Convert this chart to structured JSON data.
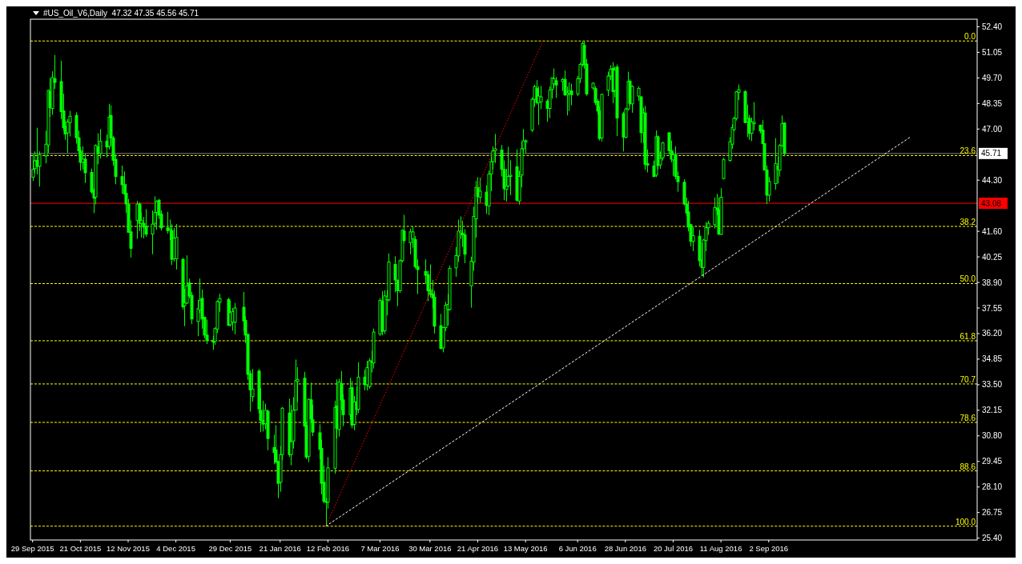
{
  "chart_data": {
    "type": "candlestick",
    "title": "#US_Oil_V6,Daily  47.32 47.35 45.56 45.71",
    "color": "#00ff00",
    "grid": false,
    "annotations": [
      {
        "text": "0.0",
        "x": "2016-12-07",
        "y": 51.65
      },
      {
        "text": "23.6",
        "x": "2016-12-07",
        "y": 45.6
      },
      {
        "text": "38.2",
        "x": "2016-12-07",
        "y": 41.86
      },
      {
        "text": "50.0",
        "x": "2016-12-07",
        "y": 38.84
      },
      {
        "text": "61.8",
        "x": "2016-12-07",
        "y": 35.82
      },
      {
        "text": "70.7",
        "x": "2016-12-07",
        "y": 33.54
      },
      {
        "text": "78.6",
        "x": "2016-12-07",
        "y": 31.51
      },
      {
        "text": "88.6",
        "x": "2016-12-07",
        "y": 28.95
      },
      {
        "text": "100.0",
        "x": "2016-12-07",
        "y": 26.03
      }
    ],
    "xlim": [
      "2015-09-28",
      "2016-12-07"
    ],
    "xticks": [
      {
        "value": "2015-09-29",
        "label": "29 Sep 2015"
      },
      {
        "value": "2015-10-21",
        "label": "21 Oct 2015"
      },
      {
        "value": "2015-11-12",
        "label": "12 Nov 2015"
      },
      {
        "value": "2015-12-04",
        "label": "4 Dec 2015"
      },
      {
        "value": "2015-12-29",
        "label": "29 Dec 2015"
      },
      {
        "value": "2016-01-21",
        "label": "21 Jan 2016"
      },
      {
        "value": "2016-02-12",
        "label": "12 Feb 2016"
      },
      {
        "value": "2016-03-07",
        "label": "7 Mar 2016"
      },
      {
        "value": "2016-03-30",
        "label": "30 Mar 2016"
      },
      {
        "value": "2016-04-21",
        "label": "21 Apr 2016"
      },
      {
        "value": "2016-05-13",
        "label": "13 May 2016"
      },
      {
        "value": "2016-06-06",
        "label": "6 Jun 2016"
      },
      {
        "value": "2016-06-28",
        "label": "28 Jun 2016"
      },
      {
        "value": "2016-07-20",
        "label": "20 Jul 2016"
      },
      {
        "value": "2016-08-11",
        "label": "11 Aug 2016"
      },
      {
        "value": "2016-09-02",
        "label": "2 Sep 2016"
      }
    ],
    "ylim": [
      25.3,
      52.8
    ],
    "yticks": [
      {
        "value": 52.4,
        "label": "52.40"
      },
      {
        "value": 51.05,
        "label": "51.05"
      },
      {
        "value": 49.7,
        "label": "49.70"
      },
      {
        "value": 48.35,
        "label": "48.35"
      },
      {
        "value": 47,
        "label": "47.00"
      },
      {
        "value": 44.3,
        "label": "44.30"
      },
      {
        "value": 41.6,
        "label": "41.60"
      },
      {
        "value": 40.25,
        "label": "40.25"
      },
      {
        "value": 38.9,
        "label": "38.90"
      },
      {
        "value": 37.55,
        "label": "37.55"
      },
      {
        "value": 36.2,
        "label": "36.20"
      },
      {
        "value": 34.85,
        "label": "34.85"
      },
      {
        "value": 33.5,
        "label": "33.50"
      },
      {
        "value": 32.15,
        "label": "32.15"
      },
      {
        "value": 30.8,
        "label": "30.80"
      },
      {
        "value": 29.45,
        "label": "29.45"
      },
      {
        "value": 28.1,
        "label": "28.10"
      },
      {
        "value": 26.75,
        "label": "26.75"
      },
      {
        "value": 25.4,
        "label": "25.40"
      }
    ],
    "ref_lines": [
      {
        "axis": "y",
        "value": 45.71,
        "label": "45.71",
        "color": "#808080",
        "line_style": "solid"
      },
      {
        "axis": "y",
        "value": 43.08,
        "label": "43.08",
        "color": "#ff0000",
        "line_style": "solid"
      },
      {
        "axis": "y",
        "value": 51.65,
        "color": "#ffff00",
        "line_style": "dashed"
      },
      {
        "axis": "y",
        "value": 45.6,
        "color": "#ffff00",
        "line_style": "dashed"
      },
      {
        "axis": "y",
        "value": 41.86,
        "color": "#ffff00",
        "line_style": "dashed"
      },
      {
        "axis": "y",
        "value": 38.84,
        "color": "#ffff00",
        "line_style": "dashed"
      },
      {
        "axis": "y",
        "value": 35.82,
        "color": "#ffff00",
        "line_style": "dashed"
      },
      {
        "axis": "y",
        "value": 33.54,
        "color": "#ffff00",
        "line_style": "dashed"
      },
      {
        "axis": "y",
        "value": 31.51,
        "color": "#ffff00",
        "line_style": "dashed"
      },
      {
        "axis": "y",
        "value": 28.95,
        "color": "#ffff00",
        "line_style": "dashed"
      },
      {
        "axis": "y",
        "value": 26.03,
        "color": "#ffff00",
        "line_style": "dashed"
      }
    ],
    "series": [
      {
        "type": "line",
        "color": "#ffffff",
        "line_style": "dashed",
        "x": [
          "2016-02-11",
          "2016-11-06"
        ],
        "values": [
          26.03,
          46.56
        ]
      },
      {
        "type": "line",
        "color": "#ff0000",
        "line_style": "dotted",
        "x": [
          "2016-02-11",
          "2016-05-21"
        ],
        "values": [
          26.03,
          51.65
        ]
      }
    ],
    "x": [
      "2015-09-29",
      "2015-09-30",
      "2015-10-01",
      "2015-10-02",
      "2015-10-05",
      "2015-10-06",
      "2015-10-07",
      "2015-10-08",
      "2015-10-09",
      "2015-10-12",
      "2015-10-13",
      "2015-10-14",
      "2015-10-15",
      "2015-10-16",
      "2015-10-19",
      "2015-10-20",
      "2015-10-21",
      "2015-10-22",
      "2015-10-23",
      "2015-10-26",
      "2015-10-27",
      "2015-10-28",
      "2015-10-29",
      "2015-10-30",
      "2015-11-02",
      "2015-11-03",
      "2015-11-04",
      "2015-11-05",
      "2015-11-06",
      "2015-11-09",
      "2015-11-10",
      "2015-11-11",
      "2015-11-12",
      "2015-11-13",
      "2015-11-16",
      "2015-11-17",
      "2015-11-18",
      "2015-11-19",
      "2015-11-20",
      "2015-11-23",
      "2015-11-24",
      "2015-11-25",
      "2015-11-26",
      "2015-11-27",
      "2015-11-30",
      "2015-12-01",
      "2015-12-02",
      "2015-12-03",
      "2015-12-04",
      "2015-12-07",
      "2015-12-08",
      "2015-12-09",
      "2015-12-10",
      "2015-12-11",
      "2015-12-14",
      "2015-12-15",
      "2015-12-16",
      "2015-12-17",
      "2015-12-18",
      "2015-12-21",
      "2015-12-22",
      "2015-12-23",
      "2015-12-24",
      "2015-12-28",
      "2015-12-29",
      "2015-12-30",
      "2015-12-31",
      "2016-01-04",
      "2016-01-05",
      "2016-01-06",
      "2016-01-07",
      "2016-01-08",
      "2016-01-11",
      "2016-01-12",
      "2016-01-13",
      "2016-01-14",
      "2016-01-15",
      "2016-01-18",
      "2016-01-19",
      "2016-01-20",
      "2016-01-21",
      "2016-01-22",
      "2016-01-25",
      "2016-01-26",
      "2016-01-27",
      "2016-01-28",
      "2016-01-29",
      "2016-02-01",
      "2016-02-02",
      "2016-02-03",
      "2016-02-04",
      "2016-02-05",
      "2016-02-08",
      "2016-02-09",
      "2016-02-10",
      "2016-02-11",
      "2016-02-12",
      "2016-02-15",
      "2016-02-16",
      "2016-02-17",
      "2016-02-18",
      "2016-02-19",
      "2016-02-22",
      "2016-02-23",
      "2016-02-24",
      "2016-02-25",
      "2016-02-26",
      "2016-02-29",
      "2016-03-01",
      "2016-03-02",
      "2016-03-03",
      "2016-03-04",
      "2016-03-07",
      "2016-03-08",
      "2016-03-09",
      "2016-03-10",
      "2016-03-11",
      "2016-03-14",
      "2016-03-15",
      "2016-03-16",
      "2016-03-17",
      "2016-03-18",
      "2016-03-21",
      "2016-03-22",
      "2016-03-23",
      "2016-03-24",
      "2016-03-28",
      "2016-03-29",
      "2016-03-30",
      "2016-03-31",
      "2016-04-01",
      "2016-04-04",
      "2016-04-05",
      "2016-04-06",
      "2016-04-07",
      "2016-04-08",
      "2016-04-11",
      "2016-04-12",
      "2016-04-13",
      "2016-04-14",
      "2016-04-15",
      "2016-04-18",
      "2016-04-19",
      "2016-04-20",
      "2016-04-21",
      "2016-04-22",
      "2016-04-25",
      "2016-04-26",
      "2016-04-27",
      "2016-04-28",
      "2016-04-29",
      "2016-05-02",
      "2016-05-03",
      "2016-05-04",
      "2016-05-05",
      "2016-05-06",
      "2016-05-09",
      "2016-05-10",
      "2016-05-11",
      "2016-05-12",
      "2016-05-13",
      "2016-05-16",
      "2016-05-17",
      "2016-05-18",
      "2016-05-19",
      "2016-05-20",
      "2016-05-23",
      "2016-05-24",
      "2016-05-25",
      "2016-05-26",
      "2016-05-27",
      "2016-05-30",
      "2016-05-31",
      "2016-06-01",
      "2016-06-02",
      "2016-06-03",
      "2016-06-06",
      "2016-06-07",
      "2016-06-08",
      "2016-06-09",
      "2016-06-10",
      "2016-06-13",
      "2016-06-14",
      "2016-06-15",
      "2016-06-16",
      "2016-06-17",
      "2016-06-20",
      "2016-06-21",
      "2016-06-22",
      "2016-06-23",
      "2016-06-24",
      "2016-06-27",
      "2016-06-28",
      "2016-06-29",
      "2016-06-30",
      "2016-07-01",
      "2016-07-04",
      "2016-07-05",
      "2016-07-06",
      "2016-07-07",
      "2016-07-08",
      "2016-07-11",
      "2016-07-12",
      "2016-07-13",
      "2016-07-14",
      "2016-07-15",
      "2016-07-18",
      "2016-07-19",
      "2016-07-20",
      "2016-07-21",
      "2016-07-22",
      "2016-07-25",
      "2016-07-26",
      "2016-07-27",
      "2016-07-28",
      "2016-07-29",
      "2016-08-01",
      "2016-08-02",
      "2016-08-03",
      "2016-08-04",
      "2016-08-05",
      "2016-08-08",
      "2016-08-09",
      "2016-08-10",
      "2016-08-11",
      "2016-08-12",
      "2016-08-15",
      "2016-08-16",
      "2016-08-17",
      "2016-08-18",
      "2016-08-19",
      "2016-08-22",
      "2016-08-23",
      "2016-08-24",
      "2016-08-25",
      "2016-08-26",
      "2016-08-29",
      "2016-08-30",
      "2016-08-31",
      "2016-09-01",
      "2016-09-02",
      "2016-09-05",
      "2016-09-06",
      "2016-09-07",
      "2016-09-08",
      "2016-09-09"
    ],
    "ohlc": [
      [
        44.46,
        45.69,
        44.26,
        44.87
      ],
      [
        44.91,
        45.82,
        44.67,
        45.32
      ],
      [
        45.35,
        47.07,
        44.6,
        45.03
      ],
      [
        45.03,
        45.82,
        43.96,
        45.64
      ],
      [
        45.58,
        46.91,
        45.18,
        46.2
      ],
      [
        46.16,
        49.08,
        45.75,
        49.04
      ],
      [
        48.98,
        49.69,
        47.65,
        48.13
      ],
      [
        48.09,
        50.05,
        47.75,
        49.72
      ],
      [
        49.66,
        50.91,
        49.12,
        49.46
      ],
      [
        49.51,
        50.61,
        47.52,
        47.92
      ],
      [
        47.96,
        48.87,
        46.91,
        47.07
      ],
      [
        47.15,
        47.45,
        46.43,
        46.74
      ],
      [
        46.8,
        47.52,
        45.75,
        47.38
      ],
      [
        47.34,
        47.96,
        46.61,
        47.68
      ],
      [
        47.72,
        47.88,
        46.23,
        46.54
      ],
      [
        46.54,
        46.91,
        45.71,
        45.85
      ],
      [
        45.85,
        46.05,
        44.8,
        45.24
      ],
      [
        45.24,
        46.09,
        44.87,
        45.41
      ],
      [
        45.41,
        45.71,
        44.15,
        44.69
      ],
      [
        44.71,
        44.91,
        43.58,
        43.68
      ],
      [
        43.79,
        43.88,
        42.56,
        43.35
      ],
      [
        43.41,
        46.19,
        43.01,
        46.13
      ],
      [
        46.05,
        46.77,
        45.14,
        45.71
      ],
      [
        45.71,
        47,
        45.45,
        46.36
      ],
      [
        46.36,
        46.7,
        45.5,
        46.05
      ],
      [
        46.09,
        48.33,
        45.92,
        47.63
      ],
      [
        47.72,
        48.26,
        46.13,
        46.53
      ],
      [
        46.53,
        46.63,
        45.07,
        45.35
      ],
      [
        45.4,
        45.66,
        44.08,
        44.49
      ],
      [
        44.49,
        45.07,
        43.58,
        44.06
      ],
      [
        44.06,
        44.76,
        43.54,
        43.58
      ],
      [
        43.61,
        44.1,
        42.56,
        43.04
      ],
      [
        43.04,
        43.31,
        41.52,
        41.55
      ],
      [
        41.57,
        42.18,
        40.22,
        40.7
      ],
      [
        42.18,
        43.21,
        41.21,
        43.04
      ],
      [
        43.04,
        43.13,
        41.61,
        42.02
      ],
      [
        42.02,
        42.6,
        41.27,
        42.18
      ],
      [
        42.02,
        42.36,
        41.23,
        41.82
      ],
      [
        41.86,
        42.77,
        41.31,
        41.45
      ],
      [
        41.45,
        42.7,
        40.39,
        41.98
      ],
      [
        42.02,
        43.45,
        41.86,
        42.59
      ],
      [
        42.6,
        43.24,
        41.68,
        43.17
      ],
      [
        43.24,
        43.31,
        42.25,
        42.45
      ],
      [
        42.5,
        42.7,
        41.64,
        41.78
      ],
      [
        41.78,
        42.63,
        41.48,
        41.64
      ],
      [
        41.64,
        42.22,
        41.14,
        41.71
      ],
      [
        41.64,
        41.98,
        39.82,
        40.12
      ],
      [
        40.15,
        41.78,
        40.01,
        41.23
      ],
      [
        40.15,
        41.98,
        39.58,
        41.28
      ],
      [
        40.12,
        40.19,
        37.47,
        37.61
      ],
      [
        37.68,
        38.56,
        36.59,
        37.81
      ],
      [
        37.81,
        40.33,
        37.77,
        38.72
      ],
      [
        38.87,
        39.1,
        38.06,
        38.19
      ],
      [
        38.22,
        38.4,
        36.7,
        36.97
      ],
      [
        36.84,
        37.98,
        36.06,
        37.52
      ],
      [
        37.45,
        39.11,
        37.28,
        37.96
      ],
      [
        38.06,
        38.53,
        36.46,
        36.97
      ],
      [
        37.06,
        37.06,
        35.95,
        36.12
      ],
      [
        36.12,
        36.94,
        35.65,
        35.83
      ],
      [
        35.85,
        36.08,
        35.34,
        35.74
      ],
      [
        35.79,
        36.53,
        35.61,
        36.46
      ],
      [
        36.44,
        37.96,
        36.22,
        37.89
      ],
      [
        37.86,
        38.3,
        37.35,
        38.05
      ],
      [
        38,
        38.09,
        36.6,
        36.64
      ],
      [
        36.67,
        37.93,
        36.57,
        37.3
      ],
      [
        36.8,
        37.55,
        36.35,
        37.37
      ],
      [
        36.8,
        37.82,
        36.16,
        37.55
      ],
      [
        37.59,
        38.4,
        36.33,
        36.87
      ],
      [
        36.9,
        37.11,
        35.69,
        36.12
      ],
      [
        36.16,
        36.16,
        33.75,
        34.05
      ],
      [
        34.09,
        34.26,
        32.08,
        33.23
      ],
      [
        32.87,
        34.33,
        32.6,
        33.27
      ],
      [
        34.22,
        34.32,
        31.99,
        32.22
      ],
      [
        32.15,
        33.31,
        30.99,
        31.61
      ],
      [
        31.61,
        32.66,
        31.03,
        31.42
      ],
      [
        31.44,
        32.5,
        31.14,
        32.15
      ],
      [
        32.1,
        32.19,
        30.04,
        30.66
      ],
      [
        30.18,
        30.87,
        29.3,
        29.92
      ],
      [
        30.06,
        31.37,
        29.34,
        29.43
      ],
      [
        29.45,
        29.48,
        27.51,
        28.29
      ],
      [
        28.35,
        30.26,
        27.85,
        29.81
      ],
      [
        29.81,
        32.32,
        29.52,
        32.26
      ],
      [
        32.01,
        32.76,
        29.68,
        29.81
      ],
      [
        29.81,
        32.43,
        29.24,
        30.49
      ],
      [
        30.53,
        32.84,
        30.13,
        32.15
      ],
      [
        32.16,
        34.83,
        32.16,
        33.72
      ],
      [
        33.67,
        34.43,
        32.6,
        33.78
      ],
      [
        33.84,
        34.18,
        31.28,
        31.31
      ],
      [
        31.35,
        31.54,
        29.57,
        29.68
      ],
      [
        29.72,
        32.76,
        29.41,
        32.73
      ],
      [
        32.7,
        33.61,
        31.51,
        31.69
      ],
      [
        31.65,
        32.43,
        30.79,
        31
      ],
      [
        30.96,
        31.41,
        29.57,
        30.09
      ],
      [
        30.14,
        30.6,
        27.71,
        28.29
      ],
      [
        28.35,
        29.23,
        27.24,
        27.34
      ],
      [
        27.34,
        27.51,
        26.04,
        27.29
      ],
      [
        27.3,
        29.68,
        26.96,
        29.11
      ],
      [
        29.09,
        32.66,
        28.8,
        32.3
      ],
      [
        32.37,
        33.78,
        30.66,
        31.2
      ],
      [
        31.14,
        33.82,
        30.76,
        33.64
      ],
      [
        33.55,
        34.22,
        32.15,
        32.69
      ],
      [
        32.7,
        33,
        31.31,
        31.92
      ],
      [
        31.92,
        33.86,
        31.65,
        33.31
      ],
      [
        33.34,
        33.7,
        31.2,
        31.37
      ],
      [
        31.4,
        32.9,
        31.1,
        32.6
      ],
      [
        32.6,
        33.4,
        31.9,
        32.2
      ],
      [
        32.2,
        34.69,
        32,
        33.9
      ],
      [
        33.9,
        34.3,
        33.2,
        33.5
      ],
      [
        33.5,
        34.76,
        33.2,
        34.4
      ],
      [
        33.4,
        34.9,
        33.3,
        34.76
      ],
      [
        34.76,
        35.3,
        34.15,
        34.68
      ],
      [
        34.65,
        36.46,
        34.35,
        36.28
      ],
      [
        36.18,
        38.08,
        36.08,
        37.95
      ],
      [
        37.91,
        38.44,
        36.12,
        36.32
      ],
      [
        36.35,
        38.49,
        36.18,
        38.19
      ],
      [
        37.98,
        38.49,
        37.16,
        38.15
      ],
      [
        37.98,
        40.43,
        37.88,
        39.98
      ],
      [
        39.85,
        40.28,
        38.38,
        39.03
      ],
      [
        39.01,
        39.06,
        37.65,
        38.46
      ],
      [
        38.46,
        40.12,
        38.35,
        40.05
      ],
      [
        40.05,
        41.71,
        39.96,
        41.65
      ],
      [
        41.61,
        42.47,
        41,
        41.11
      ],
      [
        41,
        41.75,
        40.39,
        41.57
      ],
      [
        41.2,
        41.86,
        40.73,
        41.57
      ],
      [
        41.16,
        41.34,
        39.64,
        39.74
      ],
      [
        39.74,
        40.12,
        38.29,
        39.58
      ],
      [
        39.48,
        40.12,
        38.83,
        39.28
      ],
      [
        39.31,
        39.51,
        37.91,
        38.46
      ],
      [
        38.52,
        39.85,
        38.11,
        38.26
      ],
      [
        38.29,
        39.03,
        37.54,
        38.08
      ],
      [
        38.12,
        38.46,
        36.2,
        36.59
      ],
      [
        36.62,
        37.24,
        35.37,
        35.41
      ],
      [
        35.44,
        36.56,
        35.21,
        36.52
      ],
      [
        36.52,
        37.88,
        36.32,
        37.7
      ],
      [
        37.47,
        38.29,
        36.62,
        37.74
      ],
      [
        37.47,
        39.78,
        37.41,
        39.64
      ],
      [
        39.67,
        40.77,
        39.2,
        40.32
      ],
      [
        40.3,
        42.22,
        39.98,
        41.61
      ],
      [
        41.52,
        42.39,
        41.2,
        41.61
      ],
      [
        41.5,
        42.15,
        40.77,
        41.41
      ],
      [
        41.41,
        41.71,
        39.92,
        40.39
      ],
      [
        38.72,
        40.26,
        37.57,
        40.02
      ],
      [
        39.98,
        42.9,
        39.51,
        42.39
      ],
      [
        42.26,
        44.26,
        41.26,
        43.92
      ],
      [
        43.92,
        44.46,
        43.04,
        43.44
      ],
      [
        43.4,
        44.43,
        43.1,
        43.72
      ],
      [
        43.67,
        44.03,
        42.52,
        42.97
      ],
      [
        42.94,
        44.8,
        42.45,
        44.62
      ],
      [
        44.63,
        45.64,
        43.72,
        45.28
      ],
      [
        45.28,
        46.09,
        44.87,
        45.85
      ],
      [
        45.86,
        46.74,
        45.21,
        45.96
      ],
      [
        45.89,
        46.16,
        44.49,
        44.87
      ],
      [
        44.87,
        45.35,
        43.24,
        43.85
      ],
      [
        43.81,
        44.9,
        43.17,
        43.99
      ],
      [
        43.99,
        46.06,
        43.92,
        44.5
      ],
      [
        44.5,
        45.35,
        43.51,
        44.56
      ],
      [
        45.01,
        45.93,
        43.17,
        43.24
      ],
      [
        43.2,
        44.8,
        43.01,
        44.5
      ],
      [
        44.57,
        46.34,
        43.92,
        45.96
      ],
      [
        45.96,
        47,
        45.75,
        46.38
      ],
      [
        46.32,
        46.46,
        45.72,
        46.38
      ],
      [
        46.95,
        48.67,
        46.84,
        48.57
      ],
      [
        48.57,
        49.35,
        48.17,
        49.24
      ],
      [
        49.14,
        49.58,
        48.3,
        48.4
      ],
      [
        48.4,
        49.25,
        47.22,
        48.74
      ],
      [
        48.44,
        49.28,
        48.06,
        48.7
      ],
      [
        48.47,
        48.57,
        47.38,
        48.09
      ],
      [
        48.09,
        49.25,
        47.58,
        49.05
      ],
      [
        49.1,
        49.71,
        48.6,
        49.71
      ],
      [
        49.39,
        50.2,
        49.17,
        49.66
      ],
      [
        49.55,
        49.75,
        48.64,
        49.32
      ],
      [
        49.51,
        49.69,
        49.01,
        49.62
      ],
      [
        49.62,
        50.09,
        48.74,
        48.81
      ],
      [
        48.81,
        49.24,
        47.72,
        48.91
      ],
      [
        48.9,
        49.46,
        47.95,
        49.01
      ],
      [
        49.01,
        49.39,
        48.26,
        48.81
      ],
      [
        48.85,
        49.8,
        48.74,
        49.66
      ],
      [
        49.66,
        50.5,
        49.42,
        50.41
      ],
      [
        50.41,
        51.61,
        50.3,
        51.52
      ],
      [
        51.42,
        51.61,
        50.19,
        50.39
      ],
      [
        50.43,
        50.7,
        48.76,
        48.85
      ],
      [
        49.17,
        49.46,
        49.08,
        49.42
      ],
      [
        49.14,
        49.25,
        48.26,
        48.4
      ],
      [
        48.47,
        48.57,
        47.76,
        47.95
      ],
      [
        47.96,
        48.2,
        46.4,
        46.5
      ],
      [
        46.54,
        48.87,
        46.34,
        48.83
      ],
      [
        49.05,
        50.03,
        48.74,
        49.8
      ],
      [
        49.8,
        50.37,
        49.59,
        50.16
      ],
      [
        50.2,
        50.53,
        48.36,
        48.98
      ],
      [
        49.04,
        50.3,
        48.67,
        50.12
      ],
      [
        50.27,
        50.41,
        46.63,
        47.58
      ],
      [
        47.81,
        47.92,
        45.82,
        46.57
      ],
      [
        46.57,
        48.13,
        46.5,
        48.06
      ],
      [
        48.06,
        50.03,
        47.99,
        49.51
      ],
      [
        49.52,
        49.62,
        48.22,
        48.36
      ],
      [
        48.33,
        49.31,
        47.86,
        49.25
      ],
      [
        48.74,
        49.25,
        48.49,
        49.14
      ],
      [
        48.7,
        48.74,
        46.27,
        46.81
      ],
      [
        46.81,
        48.13,
        46.27,
        47.85
      ],
      [
        47.85,
        48.22,
        44.84,
        45.14
      ],
      [
        45.17,
        45.93,
        44.71,
        45.1
      ],
      [
        45.05,
        45.34,
        44.46,
        44.49
      ],
      [
        44.57,
        46.93,
        44.46,
        46.59
      ],
      [
        46.59,
        46.66,
        44.87,
        45.07
      ],
      [
        45.11,
        45.82,
        44.9,
        45.45
      ],
      [
        45.48,
        46.33,
        45.34,
        46.27
      ],
      [
        46.8,
        46.84,
        45.66,
        45.86
      ],
      [
        45.86,
        46.39,
        45.24,
        45.41
      ],
      [
        45.37,
        45.79,
        44.53,
        45.64
      ],
      [
        45.64,
        46.09,
        44.35,
        44.5
      ],
      [
        44.5,
        44.76,
        43.69,
        44.22
      ],
      [
        44.19,
        44.35,
        42.97,
        43.04
      ],
      [
        43.04,
        43.38,
        42.4,
        42.56
      ],
      [
        42.63,
        43.21,
        41.59,
        41.82
      ],
      [
        41.95,
        42,
        40.8,
        41.07
      ],
      [
        41.07,
        41.84,
        40.55,
        41.37
      ],
      [
        41.34,
        41.68,
        39.74,
        40.05
      ],
      [
        40.08,
        40.99,
        39.24,
        39.69
      ],
      [
        39.69,
        41.2,
        39.17,
        41.14
      ],
      [
        41.11,
        42.09,
        40.55,
        41.79
      ],
      [
        41.79,
        42.16,
        41.41,
        42.02
      ],
      [
        41.95,
        43.38,
        41.75,
        42.86
      ],
      [
        42.83,
        43.58,
        42.45,
        42.73
      ],
      [
        42.73,
        43.38,
        41.41,
        41.45
      ],
      [
        41.44,
        43.88,
        41.41,
        43.4
      ],
      [
        44.39,
        45.48,
        44.33,
        45.38
      ],
      [
        45.34,
        46.57,
        45.28,
        46.33
      ],
      [
        46.2,
        47.24,
        45.96,
        47.08
      ],
      [
        46.97,
        47.65,
        46.9,
        47.56
      ],
      [
        47.56,
        49.01,
        47.45,
        48.97
      ],
      [
        48.94,
        49.35,
        48.53,
        49.08
      ],
      [
        48.98,
        49.05,
        47.31,
        47.34
      ],
      [
        47.38,
        48.29,
        46.57,
        47.56
      ],
      [
        47.56,
        47.75,
        46.43,
        46.77
      ],
      [
        46.77,
        47.61,
        46.36,
        47.38
      ],
      [
        47.28,
        48.42,
        46.93,
        47.35
      ],
      [
        47.2,
        47.24,
        46.77,
        46.9
      ],
      [
        46.94,
        47.47,
        46.2,
        46.23
      ],
      [
        46.23,
        46.23,
        44.8,
        44.84
      ],
      [
        44.84,
        45.07,
        43.04,
        43.51
      ],
      [
        43.51,
        44.46,
        43.17,
        44.23
      ],
      [
        44.12,
        46.52,
        43.8,
        45.17
      ],
      [
        45.05,
        45.55,
        44.12,
        44.87
      ],
      [
        44.83,
        46.2,
        44.49,
        46.13
      ],
      [
        46.13,
        47.72,
        46.06,
        47.28
      ],
      [
        47.32,
        47.35,
        45.56,
        45.71
      ]
    ]
  }
}
